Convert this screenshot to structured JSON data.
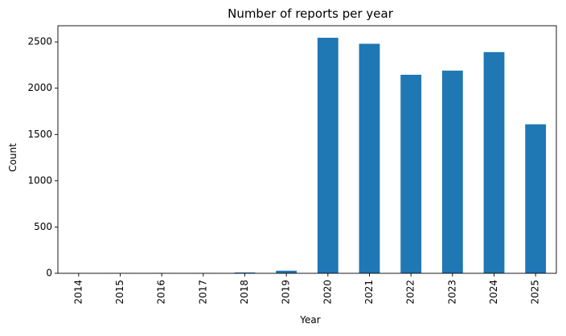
{
  "chart_data": {
    "type": "bar",
    "title": "Number of reports per year",
    "xlabel": "Year",
    "ylabel": "Count",
    "categories": [
      "2014",
      "2015",
      "2016",
      "2017",
      "2018",
      "2019",
      "2020",
      "2021",
      "2022",
      "2023",
      "2024",
      "2025"
    ],
    "values": [
      1,
      2,
      2,
      3,
      9,
      28,
      2545,
      2480,
      2145,
      2190,
      2390,
      1610
    ],
    "ylim": [
      0,
      2675
    ],
    "yticks": [
      0,
      500,
      1000,
      1500,
      2000,
      2500
    ],
    "ytick_labels": [
      "0",
      "500",
      "1000",
      "1500",
      "2000",
      "2500"
    ],
    "bar_color": "#1f77b4",
    "grid": false,
    "legend": "none"
  }
}
